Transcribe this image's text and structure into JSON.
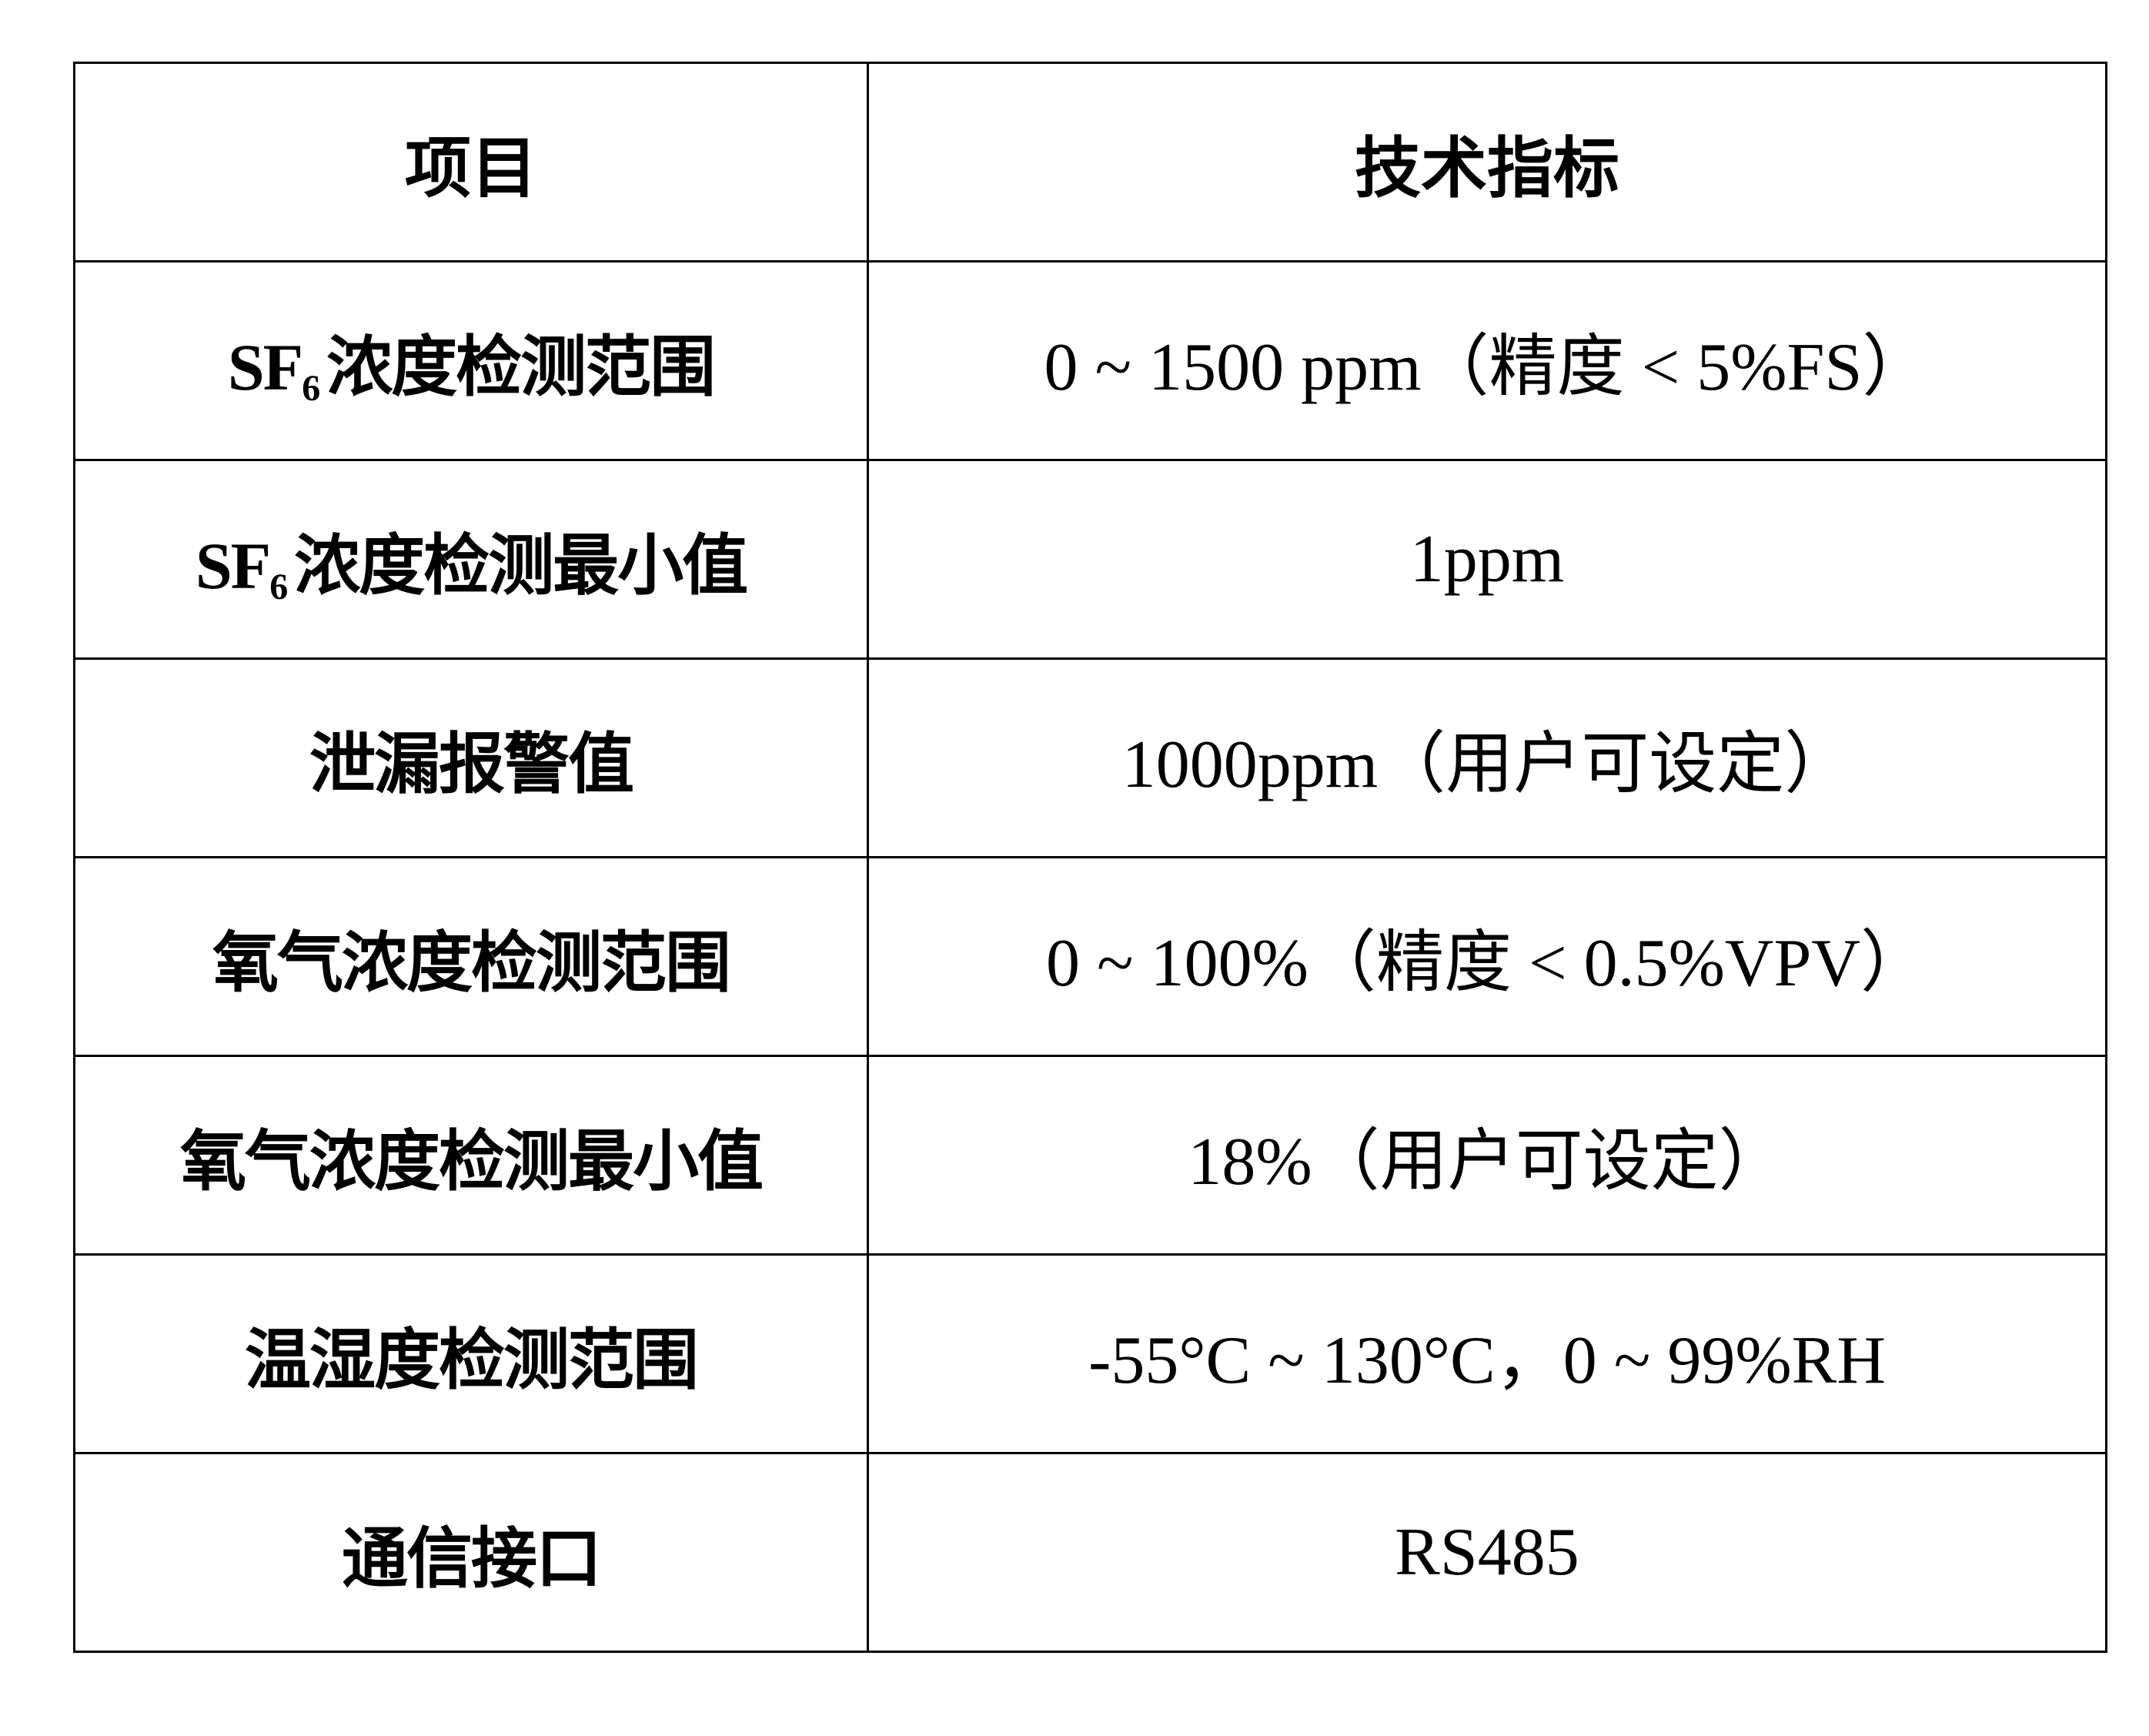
{
  "table": {
    "headers": [
      "项目",
      "技术指标"
    ],
    "rows": [
      {
        "item_prefix": "SF",
        "item_sub": "6",
        "item": "浓度检测范围",
        "spec": "0 ~ 1500 ppm（精度 < 5%FS）"
      },
      {
        "item_prefix": "SF",
        "item_sub": "6",
        "item": "浓度检测最小值",
        "spec": "1ppm"
      },
      {
        "item": "泄漏报警值",
        "spec": "1000ppm（用户可设定）"
      },
      {
        "item": "氧气浓度检测范围",
        "spec": "0 ~ 100%（精度 < 0.5%VPV）"
      },
      {
        "item": "氧气浓度检测最小值",
        "spec": "18%（用户可设定）"
      },
      {
        "item": "温湿度检测范围",
        "spec": "-55°C ~ 130°C，0 ~ 99%RH"
      },
      {
        "item": "通信接口",
        "spec": "RS485"
      }
    ]
  }
}
